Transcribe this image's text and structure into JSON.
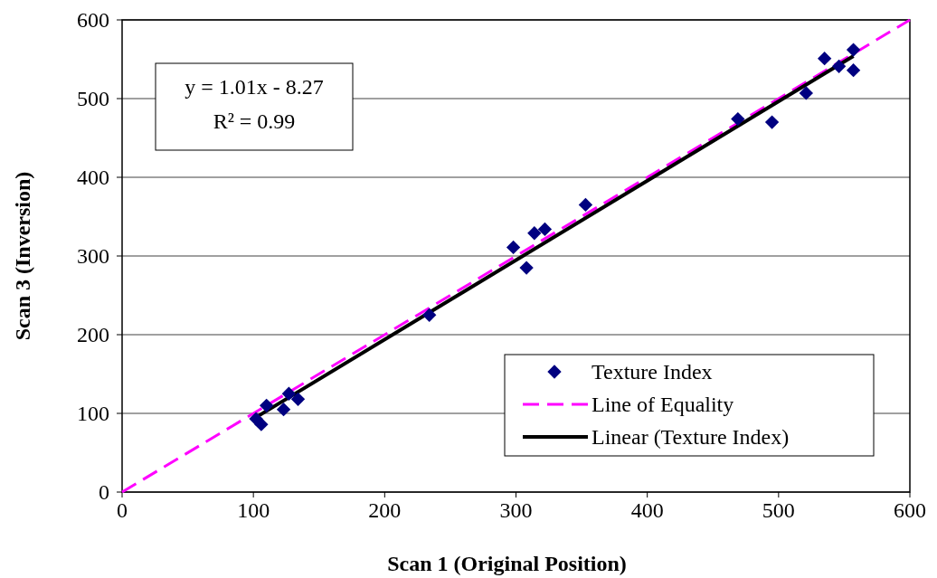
{
  "chart_data": {
    "type": "scatter",
    "xlabel": "Scan 1 (Original Position)",
    "ylabel": "Scan 3 (Inversion)",
    "xlim": [
      0,
      600
    ],
    "ylim": [
      0,
      600
    ],
    "xticks": [
      0,
      100,
      200,
      300,
      400,
      500,
      600
    ],
    "yticks": [
      0,
      100,
      200,
      300,
      400,
      500,
      600
    ],
    "grid": "y",
    "legend": "bottom right",
    "annotations": [
      "y = 1.01x - 8.27",
      "R² = 0.99"
    ],
    "series": [
      {
        "name": "Texture Index",
        "marker": "diamond",
        "color": "#000080",
        "x": [
          102,
          106,
          110,
          123,
          127,
          134,
          234,
          298,
          308,
          314,
          322,
          353,
          469,
          495,
          521,
          535,
          546,
          557,
          557
        ],
        "values": [
          93,
          86,
          110,
          105,
          125,
          118,
          225,
          311,
          285,
          329,
          334,
          365,
          474,
          470,
          507,
          551,
          541,
          562,
          536
        ]
      },
      {
        "name": "Line of Equality",
        "type": "line",
        "line_style": "dashed",
        "marker": "none",
        "color": "#ff00ff",
        "x": [
          0,
          600
        ],
        "values": [
          0,
          600
        ]
      },
      {
        "name": "Linear (Texture Index)",
        "type": "line",
        "line_style": "solid",
        "marker": "none",
        "color": "#000000",
        "x": [
          102,
          557
        ],
        "values": [
          95,
          554
        ]
      }
    ]
  }
}
